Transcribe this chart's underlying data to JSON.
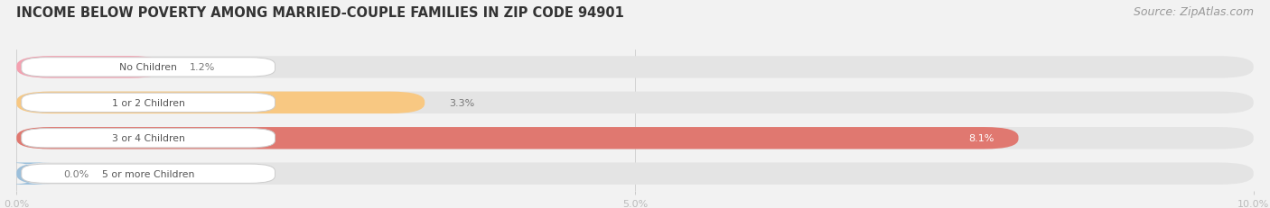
{
  "title": "INCOME BELOW POVERTY AMONG MARRIED-COUPLE FAMILIES IN ZIP CODE 94901",
  "source": "Source: ZipAtlas.com",
  "categories": [
    "No Children",
    "1 or 2 Children",
    "3 or 4 Children",
    "5 or more Children"
  ],
  "values": [
    1.2,
    3.3,
    8.1,
    0.0
  ],
  "bar_colors": [
    "#f4a0b0",
    "#f8c882",
    "#e07870",
    "#9bbfdb"
  ],
  "xlim": [
    0,
    10.0
  ],
  "xticks": [
    0.0,
    5.0,
    10.0
  ],
  "xtick_labels": [
    "0.0%",
    "5.0%",
    "10.0%"
  ],
  "background_color": "#f2f2f2",
  "bar_bg_color": "#e4e4e4",
  "title_fontsize": 10.5,
  "source_fontsize": 9,
  "figsize": [
    14.06,
    2.32
  ]
}
